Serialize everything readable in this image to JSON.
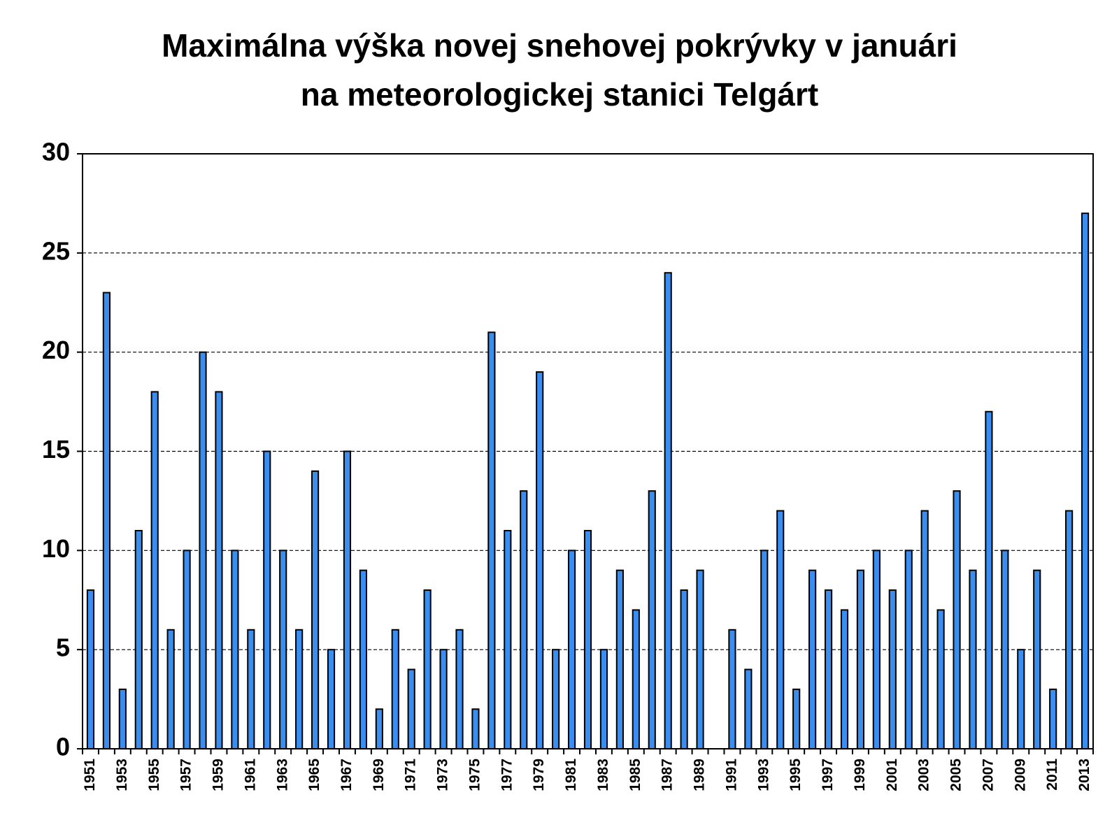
{
  "chart_data": {
    "type": "bar",
    "title": "Maximálna výška novej snehovej pokrývky v januári na meteorologickej stanici Telgárt",
    "categories": [
      "1951",
      null,
      "1953",
      null,
      "1955",
      null,
      "1957",
      null,
      "1959",
      null,
      "1961",
      null,
      "1963",
      null,
      "1965",
      null,
      "1967",
      null,
      "1969",
      null,
      "1971",
      null,
      "1973",
      null,
      "1975",
      null,
      "1977",
      null,
      "1979",
      null,
      "1981",
      null,
      "1983",
      null,
      "1985",
      null,
      "1987",
      null,
      "1989",
      null,
      "1991",
      null,
      "1993",
      null,
      "1995",
      null,
      "1997",
      null,
      "1999",
      null,
      "2001",
      null,
      "2003",
      null,
      "2005",
      null,
      "2007",
      null,
      "2009",
      null,
      "2011",
      null,
      "2013"
    ],
    "values": [
      8,
      23,
      3,
      11,
      18,
      6,
      10,
      20,
      18,
      10,
      6,
      15,
      10,
      6,
      14,
      5,
      15,
      9,
      2,
      6,
      4,
      8,
      5,
      6,
      2,
      21,
      11,
      13,
      19,
      5,
      10,
      11,
      5,
      9,
      7,
      13,
      24,
      8,
      9,
      0,
      6,
      4,
      10,
      12,
      3,
      9,
      8,
      7,
      9,
      10,
      8,
      10,
      12,
      7,
      13,
      9,
      17,
      10,
      5,
      9,
      3,
      12,
      27
    ],
    "color": "#3a8ef0",
    "ylim": [
      0,
      30
    ],
    "yticks": [
      0,
      5,
      10,
      15,
      20,
      25,
      30
    ],
    "grid": true
  }
}
